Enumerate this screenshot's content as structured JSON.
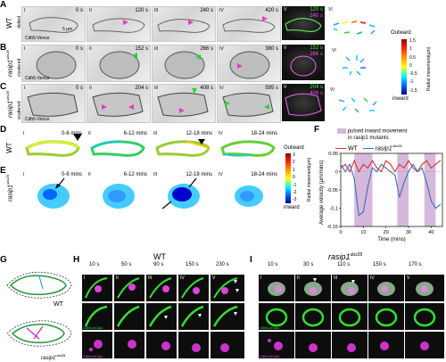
{
  "panels": {
    "A": {
      "letter": "A",
      "row_label": "WT",
      "times": [
        "0 s",
        "120 s",
        "240 s",
        "420 s"
      ],
      "merge_times": [
        "120 s",
        "240 s"
      ],
      "romans": [
        "I",
        "II",
        "III",
        "IV",
        "V",
        "VI"
      ],
      "side_label": "dotted",
      "marker": "Cdh5-Venus",
      "scale": "5 µm"
    },
    "B": {
      "letter": "B",
      "row_label": "rasip1",
      "row_sup": "ubs28",
      "times": [
        "0 s",
        "152 s",
        "266 s",
        "380 s"
      ],
      "merge_times": [
        "152 s",
        "266 s"
      ],
      "romans": [
        "I",
        "II",
        "III",
        "IV",
        "V",
        "VI"
      ],
      "side_label": "clustered",
      "marker": "Cdh5-Venus"
    },
    "C": {
      "letter": "C",
      "row_label": "rasip1",
      "row_sup": "ubs28",
      "times": [
        "0 s",
        "204 s",
        "408 s",
        "595 s"
      ],
      "merge_times": [
        "204 s",
        "408 s"
      ],
      "romans": [
        "I",
        "II",
        "III",
        "IV",
        "V",
        "VI"
      ],
      "side_label": "scattered",
      "marker": "Cdh5-Venus"
    },
    "colorbar1": {
      "top": "Outward",
      "bottom": "inward",
      "title": "Radial movement(µm)",
      "ticks": [
        "1.5",
        "1",
        "0.5",
        "0",
        "-0.5",
        "-1",
        "-1.5"
      ]
    },
    "D": {
      "letter": "D",
      "row_label": "WT",
      "windows": [
        "0-6 mins",
        "6-12 mins",
        "12-18 mins",
        "18-24 mins"
      ],
      "romans": [
        "I",
        "II",
        "III",
        "IV"
      ]
    },
    "E": {
      "letter": "E",
      "row_label": "rasip1",
      "row_sup": "ubs28",
      "windows": [
        "0-6 mins",
        "6-12 mins",
        "12-18 mins",
        "18-24 mins"
      ],
      "romans": [
        "I",
        "II",
        "III",
        "IV"
      ]
    },
    "colorbar2": {
      "top": "Outward",
      "bottom": "inward",
      "title": "Radial movement(µm)",
      "ticks": [
        "3",
        "2",
        "1",
        "0",
        "-1",
        "-2",
        "-3"
      ]
    },
    "F": {
      "letter": "F",
      "legend_box": "pulsed inward movement",
      "legend_box2": "in rasip1 mutants",
      "legend_wt": "WT",
      "legend_mut": "rasip1",
      "legend_mut_sup": "ubs28",
      "ylabel": "Average velocity (µm/mins)",
      "xlabel": "Time (mins)"
    },
    "G": {
      "letter": "G",
      "wt": "WT",
      "mut": "rasip1",
      "mut_sup": "ubs28"
    },
    "H": {
      "letter": "H",
      "title": "WT",
      "times": [
        "10 s",
        "50 s",
        "90 s",
        "150 s",
        "230 s"
      ],
      "romans": [
        "I",
        "II",
        "III",
        "IV",
        "V"
      ],
      "ch1": "Cdh5-mClav",
      "ch2": "Cdh5-mClav"
    },
    "I": {
      "letter": "I",
      "title": "rasip1",
      "title_sup": "ubs28",
      "times": [
        "10 s",
        "30 s",
        "110 s",
        "150 s",
        "170 s"
      ],
      "romans": [
        "I",
        "II",
        "III",
        "IV",
        "V"
      ],
      "ch1": "Cdh5-mClav",
      "ch2": "Cdh5-mClav"
    }
  },
  "chart_data": {
    "type": "line",
    "xlabel": "Time (mins)",
    "ylabel": "Average velocity (µm/mins)",
    "xlim": [
      0,
      45
    ],
    "ylim": [
      -0.15,
      0.05
    ],
    "xticks": [
      0,
      10,
      20,
      30,
      40
    ],
    "yticks": [
      0.05,
      0,
      -0.05,
      -0.1,
      -0.15
    ],
    "shaded_intervals": [
      [
        6,
        14
      ],
      [
        25,
        30
      ],
      [
        37,
        42
      ]
    ],
    "series": [
      {
        "name": "WT",
        "color": "#d9342b",
        "x": [
          0,
          2,
          4,
          6,
          8,
          10,
          12,
          14,
          16,
          18,
          20,
          22,
          24,
          26,
          28,
          30,
          32,
          34,
          36,
          38,
          40,
          42,
          44
        ],
        "y": [
          0.01,
          0.02,
          0.0,
          0.03,
          0.0,
          0.02,
          0.01,
          0.03,
          0.01,
          0.0,
          0.03,
          0.02,
          0.0,
          0.02,
          0.01,
          0.03,
          0.01,
          0.0,
          0.02,
          0.03,
          0.01,
          0.02,
          0.03
        ]
      },
      {
        "name": "rasip1",
        "color": "#3b6fb5",
        "x": [
          0,
          2,
          4,
          6,
          8,
          10,
          12,
          14,
          16,
          18,
          20,
          22,
          24,
          26,
          28,
          30,
          32,
          34,
          36,
          38,
          40,
          42,
          44
        ],
        "y": [
          0.02,
          0.0,
          0.02,
          -0.02,
          -0.12,
          -0.11,
          -0.04,
          0.01,
          0.0,
          0.02,
          0.01,
          0.0,
          -0.01,
          -0.07,
          -0.03,
          0.0,
          0.02,
          0.0,
          0.01,
          -0.03,
          -0.08,
          -0.1,
          -0.09
        ]
      }
    ]
  }
}
